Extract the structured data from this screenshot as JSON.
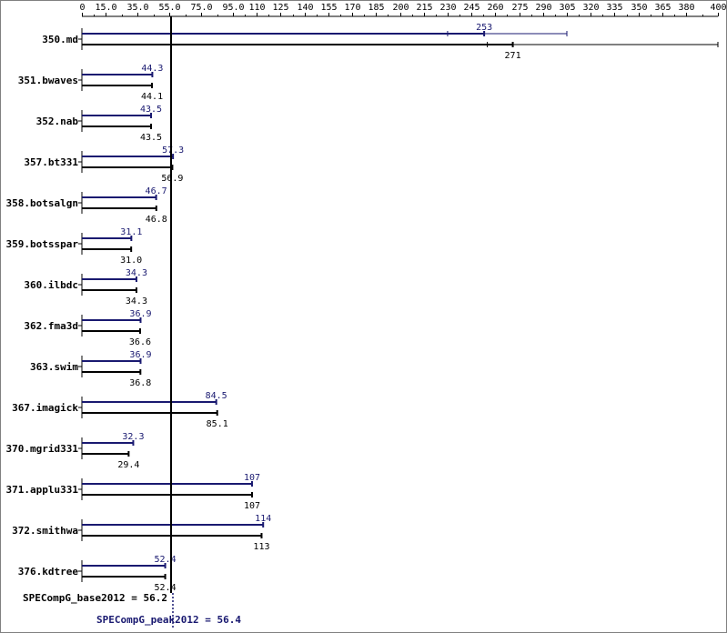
{
  "chart_data": {
    "type": "bar",
    "orientation": "horizontal",
    "xlim": [
      0,
      400
    ],
    "ticks": [
      "0",
      "15.0",
      "35.0",
      "55.0",
      "75.0",
      "95.0",
      "110",
      "125",
      "140",
      "155",
      "170",
      "185",
      "200",
      "215",
      "230",
      "245",
      "260",
      "275",
      "290",
      "305",
      "320",
      "335",
      "350",
      "365",
      "380",
      "400"
    ],
    "categories": [
      "350.md",
      "351.bwaves",
      "352.nab",
      "357.bt331",
      "358.botsalgn",
      "359.botsspar",
      "360.ilbdc",
      "362.fma3d",
      "363.swim",
      "367.imagick",
      "370.mgrid331",
      "371.applu331",
      "372.smithwa",
      "376.kdtree"
    ],
    "series": [
      {
        "role": "peak",
        "values": [
          253,
          44.3,
          43.5,
          57.3,
          46.7,
          31.1,
          34.3,
          36.9,
          36.9,
          84.5,
          32.3,
          107,
          114,
          52.4
        ],
        "labels": [
          "253",
          "44.3",
          "43.5",
          "57.3",
          "46.7",
          "31.1",
          "34.3",
          "36.9",
          "36.9",
          "84.5",
          "32.3",
          "107",
          "114",
          "52.4"
        ],
        "color": "#191970"
      },
      {
        "role": "base",
        "values": [
          271,
          44.1,
          43.5,
          56.9,
          46.8,
          31.0,
          34.3,
          36.6,
          36.8,
          85.1,
          29.4,
          107,
          113,
          52.4
        ],
        "labels": [
          "271",
          "44.1",
          "43.5",
          "56.9",
          "46.8",
          "31.0",
          "34.3",
          "36.6",
          "36.8",
          "85.1",
          "29.4",
          "107",
          "113",
          "52.4"
        ],
        "color": "#000000"
      }
    ],
    "error_ranges": {
      "350.md": {
        "peak": [
          230,
          305
        ],
        "base": [
          255,
          400
        ]
      }
    },
    "reference_lines": {
      "base": {
        "label": "SPECompG_base2012 = 56.2",
        "value": 56.2
      },
      "peak": {
        "label": "SPECompG_peak2012 = 56.4",
        "value": 56.4
      }
    }
  }
}
